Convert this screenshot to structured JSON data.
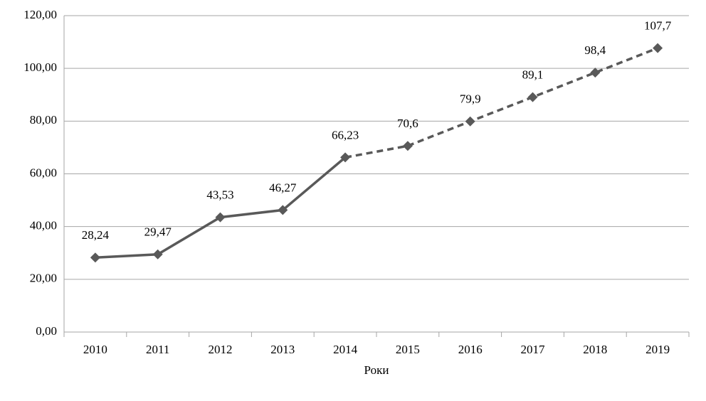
{
  "chart_data": {
    "type": "line",
    "x_label": "Роки",
    "categories": [
      "2010",
      "2011",
      "2012",
      "2013",
      "2014",
      "2015",
      "2016",
      "2017",
      "2018",
      "2019"
    ],
    "series": [
      {
        "color": "#595959",
        "dash": false,
        "values": [
          28.24,
          29.47,
          43.53,
          46.27,
          66.23,
          null,
          null,
          null,
          null,
          null
        ],
        "value_labels": [
          "28,24",
          "29,47",
          "43,53",
          "46,27",
          "66,23",
          null,
          null,
          null,
          null,
          null
        ]
      },
      {
        "color": "#595959",
        "dash": true,
        "values": [
          null,
          null,
          null,
          null,
          null,
          70.6,
          79.9,
          89.1,
          98.4,
          107.7
        ],
        "value_labels": [
          null,
          null,
          null,
          null,
          null,
          "70,6",
          "79,9",
          "89,1",
          "98,4",
          "107,7"
        ]
      }
    ],
    "ylim": [
      0,
      120
    ],
    "yticks": [
      {
        "value": 0,
        "label": "0,00"
      },
      {
        "value": 20,
        "label": "20,00"
      },
      {
        "value": 40,
        "label": "40,00"
      },
      {
        "value": 60,
        "label": "60,00"
      },
      {
        "value": 80,
        "label": "80,00"
      },
      {
        "value": 100,
        "label": "100,00"
      },
      {
        "value": 120,
        "label": "120,00"
      }
    ],
    "grid": true
  }
}
